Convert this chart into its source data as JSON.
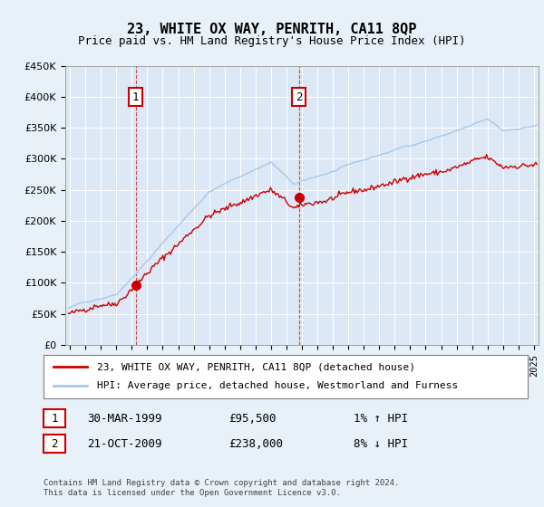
{
  "title": "23, WHITE OX WAY, PENRITH, CA11 8QP",
  "subtitle": "Price paid vs. HM Land Registry's House Price Index (HPI)",
  "legend_line1": "23, WHITE OX WAY, PENRITH, CA11 8QP (detached house)",
  "legend_line2": "HPI: Average price, detached house, Westmorland and Furness",
  "footer": "Contains HM Land Registry data © Crown copyright and database right 2024.\nThis data is licensed under the Open Government Licence v3.0.",
  "annotation1_date": "30-MAR-1999",
  "annotation1_price": "£95,500",
  "annotation1_hpi": "1% ↑ HPI",
  "annotation2_date": "21-OCT-2009",
  "annotation2_price": "£238,000",
  "annotation2_hpi": "8% ↓ HPI",
  "hpi_color": "#a8c8e8",
  "price_color": "#cc0000",
  "background_color": "#e8f0f8",
  "plot_bg_color": "#dce8f5",
  "annotation_box_color": "#cc0000",
  "ylim": [
    0,
    450000
  ],
  "yticks": [
    0,
    50000,
    100000,
    150000,
    200000,
    250000,
    300000,
    350000,
    400000,
    450000
  ],
  "sale1_x": 1999.25,
  "sale1_y": 95500,
  "sale2_x": 2009.8,
  "sale2_y": 238000,
  "xmin": 1995,
  "xmax": 2025
}
